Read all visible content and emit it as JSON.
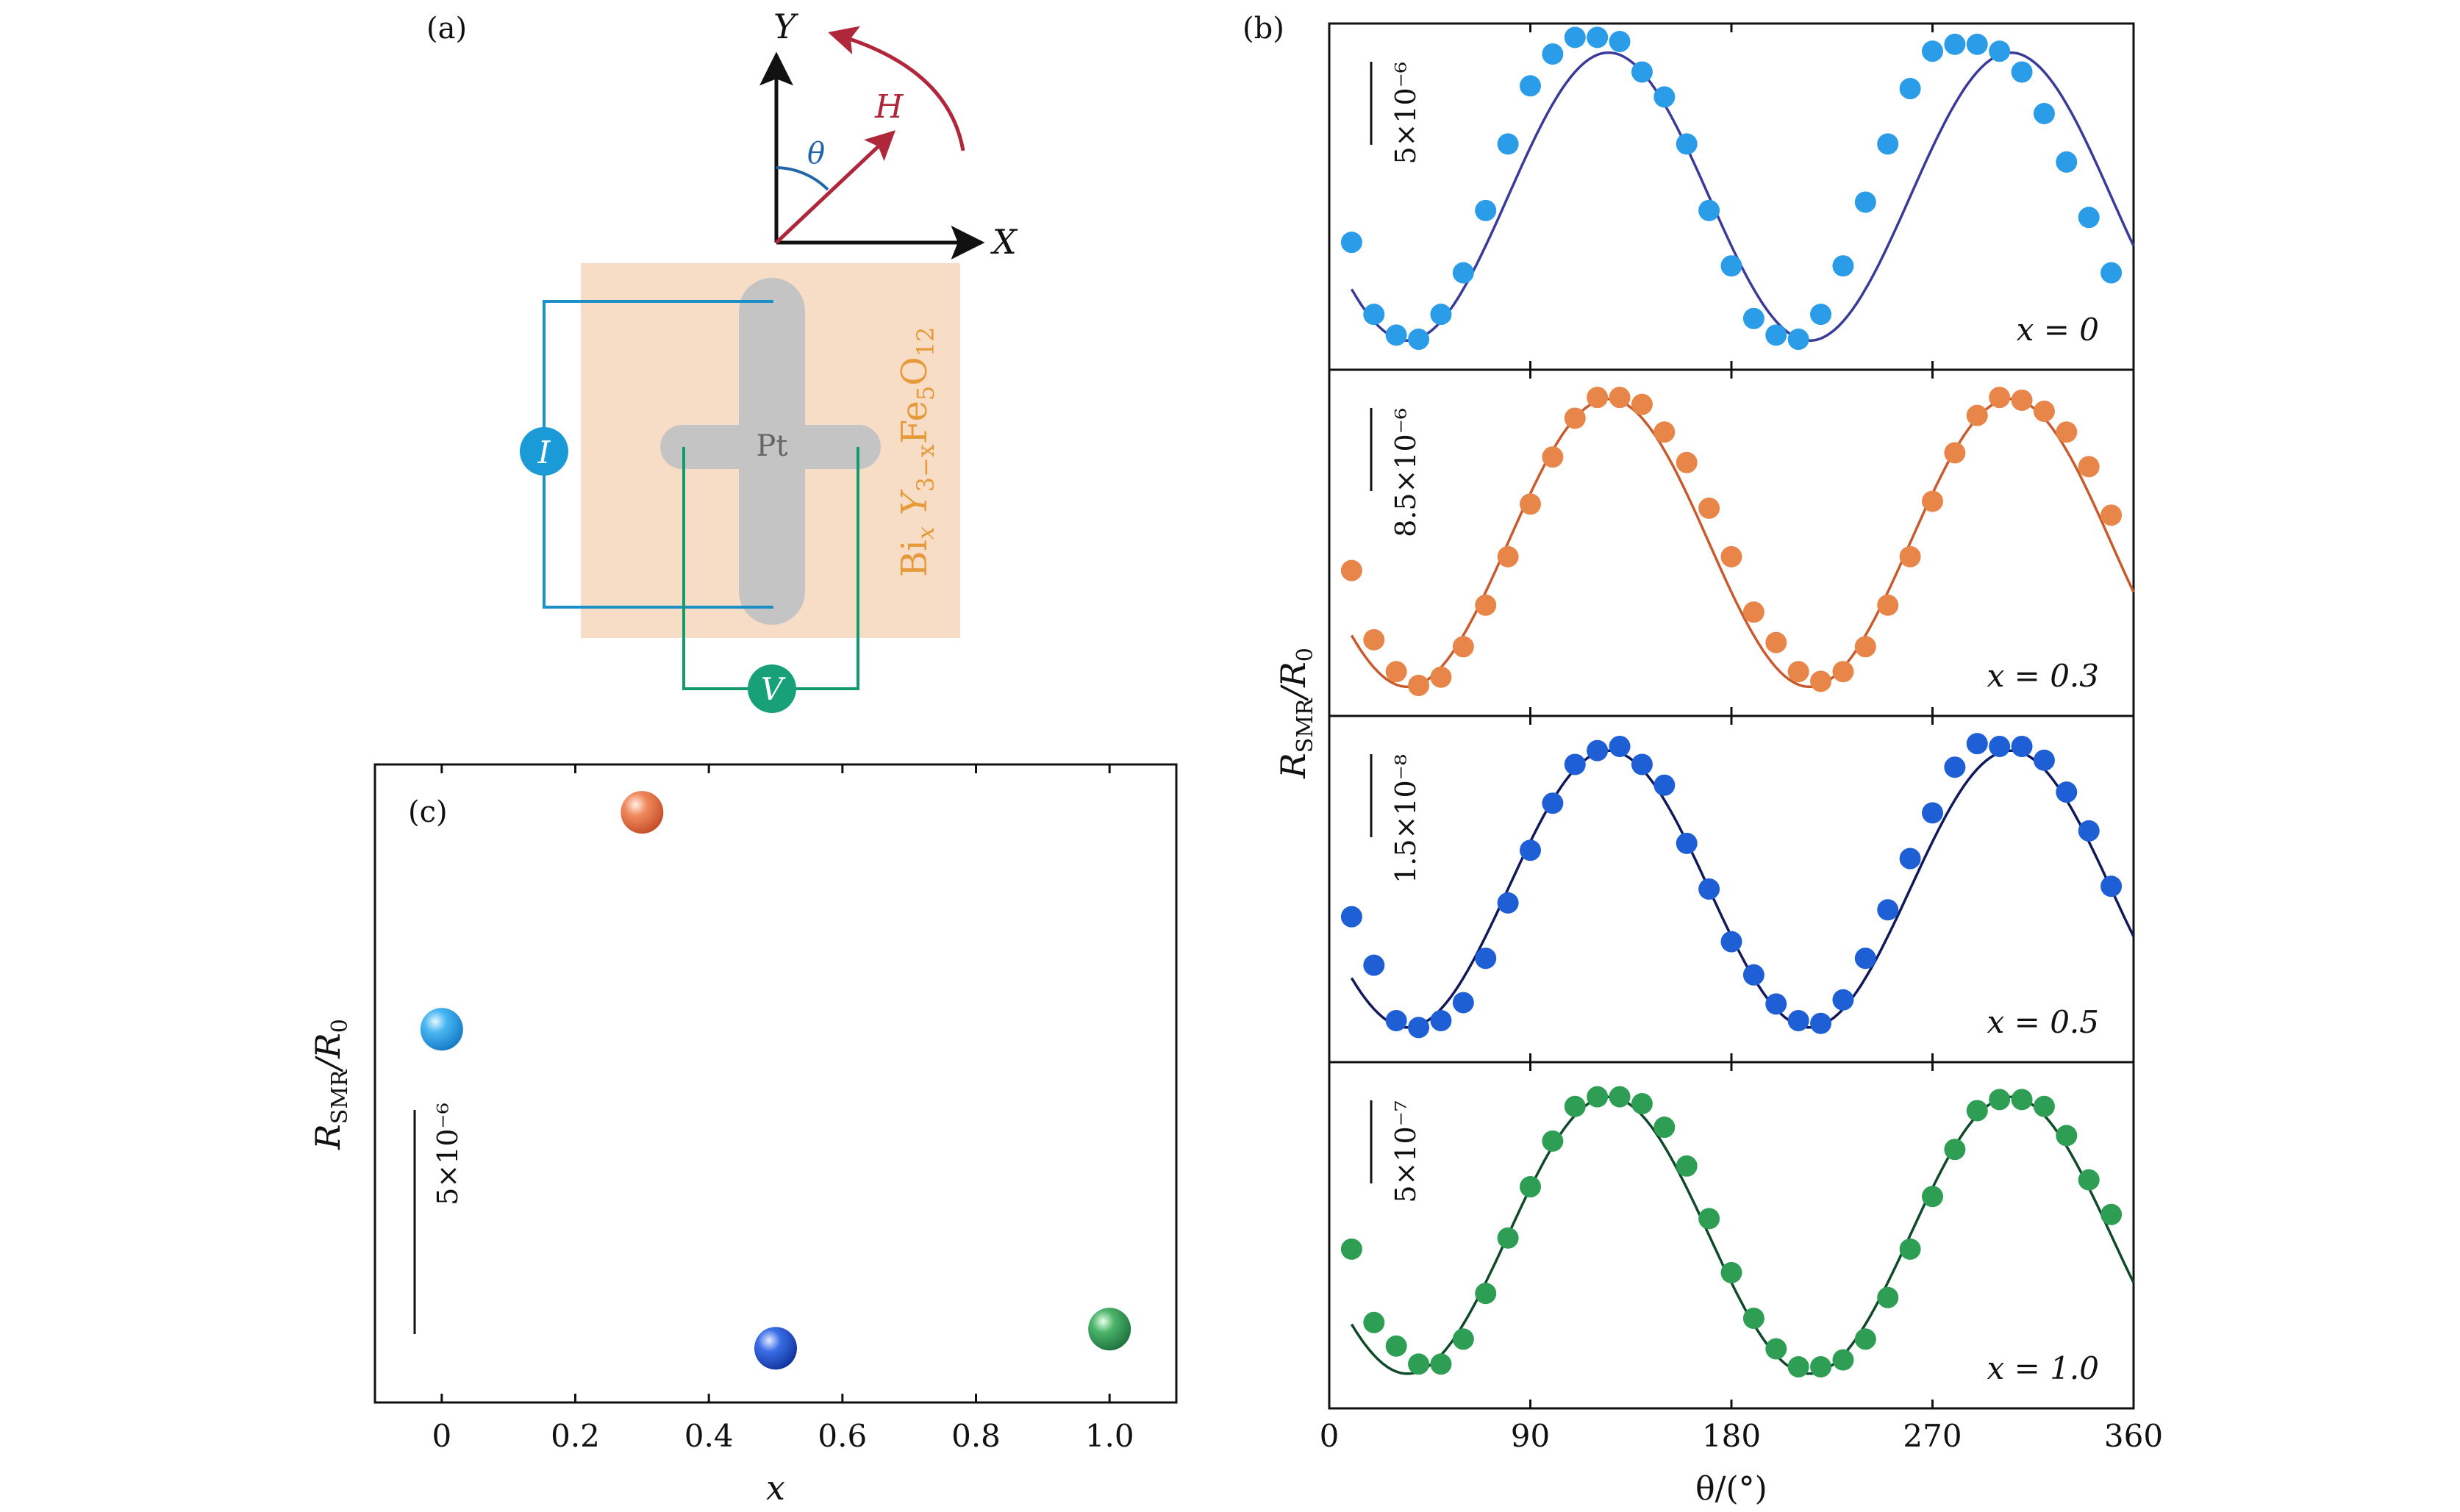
{
  "panels": {
    "a": {
      "label": "(a)",
      "axis_x": "X",
      "axis_y": "Y",
      "field": "H",
      "angle": "θ",
      "electrode": "Pt",
      "current": "I",
      "voltage": "V",
      "film": "Bi",
      "film_x": "x",
      "film_y": "Y",
      "film_y_sub": "3−x",
      "film_fe": "Fe",
      "film_fe_sub": "5",
      "film_o": "O",
      "film_o_sub": "12"
    },
    "b": {
      "label": "(b)"
    },
    "c": {
      "label": "(c)"
    }
  },
  "colors": {
    "x0_marker": "#2a9ce8",
    "x0_line": "#3a3a9a",
    "x03_marker": "#e8864a",
    "x03_line": "#c85a2e",
    "x05_marker": "#1f5fd6",
    "x05_line": "#101a5a",
    "x10_marker": "#2f9e55",
    "x10_line": "#0f4a2a",
    "film": "#f7dcc6",
    "pt": "#c4c4c4",
    "i_circuit": "#1a8fc8",
    "v_circuit": "#139a6e",
    "arrow": "#b0263a",
    "angle_arc": "#2266aa",
    "film_text": "#e69a3a"
  },
  "chart_data": [
    {
      "panel": "b",
      "type": "scatter",
      "xlabel": "θ/(°)",
      "ylabel_main": "R",
      "ylabel_sub": "SMR",
      "ylabel_rest": "/R",
      "ylabel_sub2": "0",
      "xlim": [
        0,
        360
      ],
      "xticks": [
        0,
        90,
        180,
        270,
        360
      ],
      "x_start": 10,
      "x_step": 10,
      "series": [
        {
          "name": "x = 0",
          "scale_bar": "5×10⁻⁶",
          "ylim": [
            -1.25,
            1.25
          ],
          "points": [
            -0.33,
            -0.85,
            -1.0,
            -1.03,
            -0.85,
            -0.55,
            -0.1,
            0.38,
            0.8,
            1.03,
            1.15,
            1.15,
            1.12,
            0.9,
            0.72,
            0.38,
            -0.1,
            -0.5,
            -0.88,
            -1.0,
            -1.03,
            -0.85,
            -0.5,
            -0.04,
            0.38,
            0.78,
            1.05,
            1.1,
            1.1,
            1.05,
            0.9,
            0.6,
            0.25,
            -0.15,
            -0.55
          ],
          "fit": {
            "amp": 1.04,
            "phase": 125
          }
        },
        {
          "name": "x = 0.3",
          "scale_bar": "8.5×10⁻⁶",
          "ylim": [
            -1.25,
            1.25
          ],
          "points": [
            -0.2,
            -0.7,
            -0.93,
            -1.03,
            -0.97,
            -0.75,
            -0.45,
            -0.1,
            0.28,
            0.62,
            0.9,
            1.05,
            1.05,
            1.0,
            0.8,
            0.58,
            0.25,
            -0.1,
            -0.5,
            -0.72,
            -0.93,
            -1.0,
            -0.93,
            -0.75,
            -0.45,
            -0.1,
            0.3,
            0.65,
            0.92,
            1.05,
            1.03,
            0.95,
            0.8,
            0.55,
            0.2
          ],
          "fit": {
            "amp": 1.04,
            "phase": 125
          }
        },
        {
          "name": "x = 0.5",
          "scale_bar": "1.5×10⁻⁸",
          "ylim": [
            -1.25,
            1.25
          ],
          "points": [
            -0.2,
            -0.55,
            -0.95,
            -1.0,
            -0.95,
            -0.82,
            -0.5,
            -0.1,
            0.28,
            0.62,
            0.9,
            1.0,
            1.03,
            0.9,
            0.75,
            0.33,
            0.0,
            -0.38,
            -0.62,
            -0.83,
            -0.95,
            -0.97,
            -0.8,
            -0.5,
            -0.15,
            0.22,
            0.55,
            0.88,
            1.05,
            1.03,
            1.03,
            0.93,
            0.7,
            0.42,
            0.02
          ],
          "fit": {
            "amp": 1.0,
            "phase": 125
          }
        },
        {
          "name": "x = 1.0",
          "scale_bar": "5×10⁻⁷",
          "ylim": [
            -1.25,
            1.25
          ],
          "points": [
            -0.1,
            -0.63,
            -0.8,
            -0.93,
            -0.93,
            -0.75,
            -0.42,
            -0.02,
            0.35,
            0.68,
            0.93,
            1.0,
            1.0,
            0.95,
            0.78,
            0.5,
            0.12,
            -0.27,
            -0.6,
            -0.82,
            -0.95,
            -0.95,
            -0.9,
            -0.75,
            -0.45,
            -0.1,
            0.28,
            0.62,
            0.9,
            0.98,
            0.98,
            0.93,
            0.72,
            0.4,
            0.15
          ],
          "fit": {
            "amp": 1.0,
            "phase": 125
          }
        }
      ]
    },
    {
      "panel": "c",
      "type": "scatter",
      "xlabel": "x",
      "ylabel_main": "R",
      "ylabel_sub": "SMR",
      "ylabel_rest": "/R",
      "ylabel_sub2": "0",
      "scale_bar": "5×10⁻⁶",
      "xlim": [
        -0.1,
        1.1
      ],
      "ylim": [
        0,
        1
      ],
      "xticks": [
        0,
        0.2,
        0.4,
        0.6,
        0.8,
        1.0
      ],
      "xtick_labels": [
        "0",
        "0.2",
        "0.4",
        "0.6",
        "0.8",
        "1.0"
      ],
      "points": [
        {
          "x": 0,
          "y": 0.585
        },
        {
          "x": 0.3,
          "y": 0.925
        },
        {
          "x": 0.5,
          "y": 0.085
        },
        {
          "x": 1.0,
          "y": 0.115
        }
      ]
    }
  ]
}
